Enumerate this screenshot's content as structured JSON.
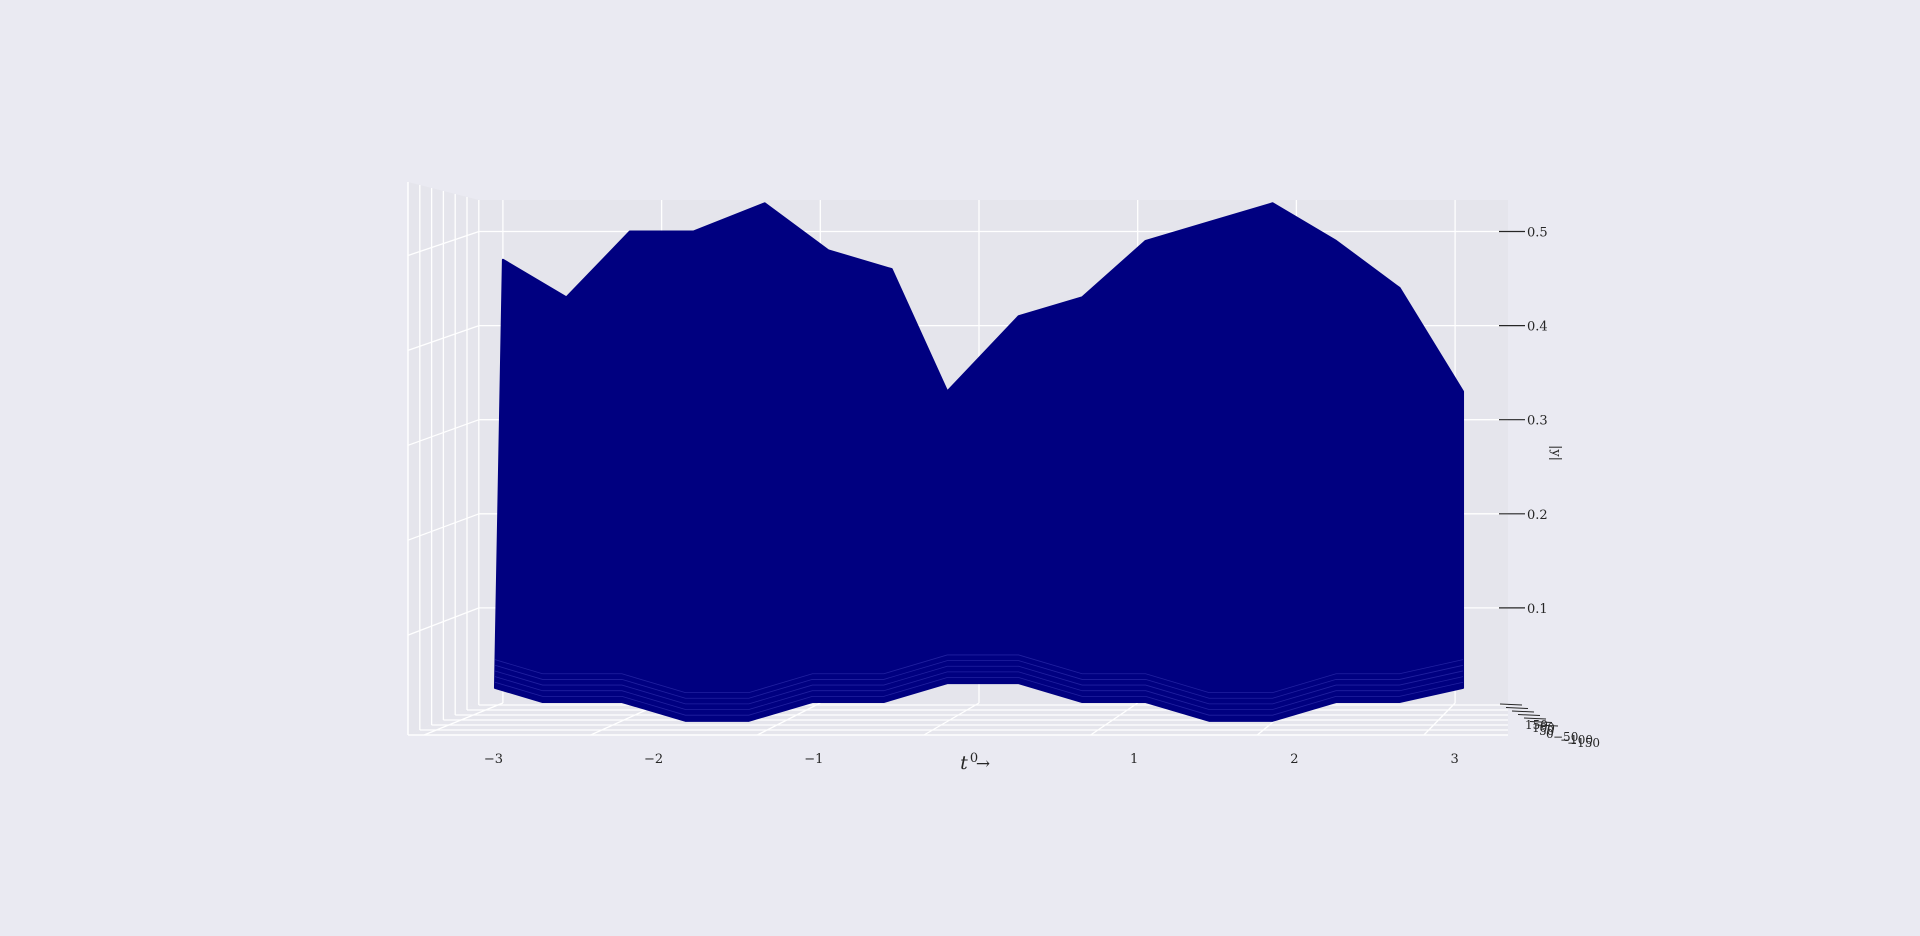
{
  "colors": {
    "background": "#eaeaf2",
    "pane": "#e5e5ec",
    "grid": "#ffffff",
    "surface": "#000080",
    "text": "#262626"
  },
  "chart_data": {
    "type": "3d-surface",
    "view": "front elevation (t axis horizontal, |y| vertical, third axis receding)",
    "xlabel": "t",
    "xlabel_suffix": "→",
    "ylabel": "|y|",
    "xlim": [
      -3.4,
      3.4
    ],
    "zlim": [
      0,
      0.52
    ],
    "xticks": [
      "−3",
      "−2",
      "−1",
      "0",
      "1",
      "2",
      "3"
    ],
    "xtick_values": [
      -3,
      -2,
      -1,
      0,
      1,
      2,
      3
    ],
    "zticks": [
      "0.1",
      "0.2",
      "0.3",
      "0.4",
      "0.5"
    ],
    "ztick_values": [
      0.1,
      0.2,
      0.3,
      0.4,
      0.5
    ],
    "depth_ticks": [
      "150",
      "100",
      "50",
      "0",
      "−50",
      "−100",
      "−150"
    ],
    "grid": true,
    "surface_top_profile": {
      "t": [
        -3.0,
        -2.6,
        -2.2,
        -1.8,
        -1.35,
        -0.95,
        -0.55,
        -0.2,
        0.25,
        0.65,
        1.05,
        1.45,
        1.85,
        2.25,
        2.65,
        3.05
      ],
      "values": [
        0.47,
        0.43,
        0.5,
        0.5,
        0.53,
        0.48,
        0.46,
        0.33,
        0.41,
        0.43,
        0.49,
        0.51,
        0.53,
        0.49,
        0.44,
        0.33
      ]
    },
    "surface_base_profile": {
      "t": [
        -3.05,
        -2.75,
        -2.25,
        -1.85,
        -1.45,
        -1.05,
        -0.6,
        -0.2,
        0.25,
        0.65,
        1.05,
        1.45,
        1.85,
        2.25,
        2.65,
        3.05
      ],
      "values": [
        0.015,
        0.0,
        0.0,
        -0.02,
        -0.02,
        0.0,
        0.0,
        0.02,
        0.02,
        0.0,
        0.0,
        -0.02,
        -0.02,
        0.0,
        0.0,
        0.015
      ]
    }
  }
}
